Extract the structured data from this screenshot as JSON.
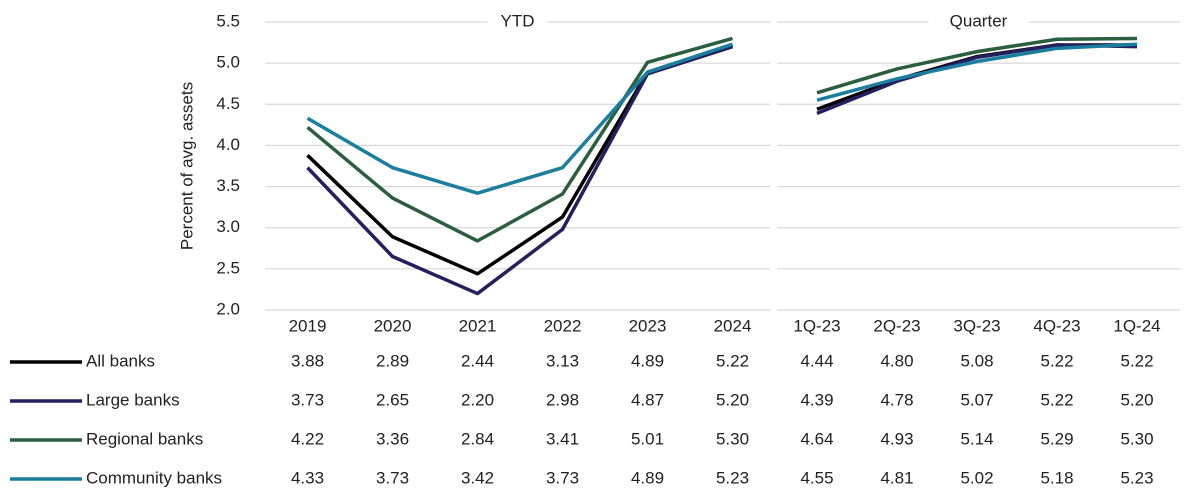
{
  "chart_data": [
    {
      "type": "line",
      "title": "YTD",
      "y_label": "Percent of avg. assets",
      "categories": [
        "2019",
        "2020",
        "2021",
        "2022",
        "2023",
        "2024"
      ],
      "ylim": [
        2.0,
        5.5
      ],
      "yticks": [
        {
          "value": 2.0,
          "label": "2.0"
        },
        2.5,
        {
          "value": 3.0,
          "label": "3.0"
        },
        3.5,
        {
          "value": 4.0,
          "label": "4.0"
        },
        4.5,
        {
          "value": 5.0,
          "label": "5.0"
        },
        5.5
      ],
      "grid": true,
      "series": [
        {
          "name": "All banks",
          "color": "#000000",
          "values": [
            3.88,
            2.89,
            2.44,
            3.13,
            4.89,
            5.22
          ],
          "value_labels": [
            "3.88",
            "2.89",
            "2.44",
            "3.13",
            "4.89",
            "5.22"
          ]
        },
        {
          "name": "Large banks",
          "color": "#241f5e",
          "values": [
            3.73,
            2.65,
            2.2,
            2.98,
            4.87,
            5.2
          ],
          "value_labels": [
            "3.73",
            "2.65",
            "2.20",
            "2.98",
            "4.87",
            "5.20"
          ]
        },
        {
          "name": "Regional banks",
          "color": "#2a5e3e",
          "values": [
            4.22,
            3.36,
            2.84,
            3.41,
            5.01,
            5.3
          ],
          "value_labels": [
            "4.22",
            "3.36",
            "2.84",
            "3.41",
            "5.01",
            "5.30"
          ]
        },
        {
          "name": "Community banks",
          "color": "#1c7e9e",
          "values": [
            4.33,
            3.73,
            3.42,
            3.73,
            4.89,
            5.23
          ],
          "value_labels": [
            "4.33",
            "3.73",
            "3.42",
            "3.73",
            "4.89",
            "5.23"
          ]
        }
      ]
    },
    {
      "type": "line",
      "title": "Quarter",
      "categories": [
        "1Q-23",
        "2Q-23",
        "3Q-23",
        "4Q-23",
        "1Q-24"
      ],
      "ylim": [
        2.0,
        5.5
      ],
      "grid": true,
      "series": [
        {
          "color": "#000000",
          "values": [
            4.44,
            4.8,
            5.08,
            5.22,
            5.22
          ],
          "value_labels": [
            "4.44",
            "4.80",
            "5.08",
            "5.22",
            "5.22"
          ]
        },
        {
          "color": "#241f5e",
          "values": [
            4.39,
            4.78,
            5.07,
            5.22,
            5.2
          ],
          "value_labels": [
            "4.39",
            "4.78",
            "5.07",
            "5.22",
            "5.20"
          ]
        },
        {
          "color": "#2a5e3e",
          "values": [
            4.64,
            4.93,
            5.14,
            5.29,
            5.3
          ],
          "value_labels": [
            "4.64",
            "4.93",
            "5.14",
            "5.29",
            "5.30"
          ]
        },
        {
          "color": "#1c7e9e",
          "values": [
            4.55,
            4.81,
            5.02,
            5.18,
            5.23
          ],
          "value_labels": [
            "4.55",
            "4.81",
            "5.02",
            "5.18",
            "5.23"
          ]
        }
      ]
    }
  ]
}
